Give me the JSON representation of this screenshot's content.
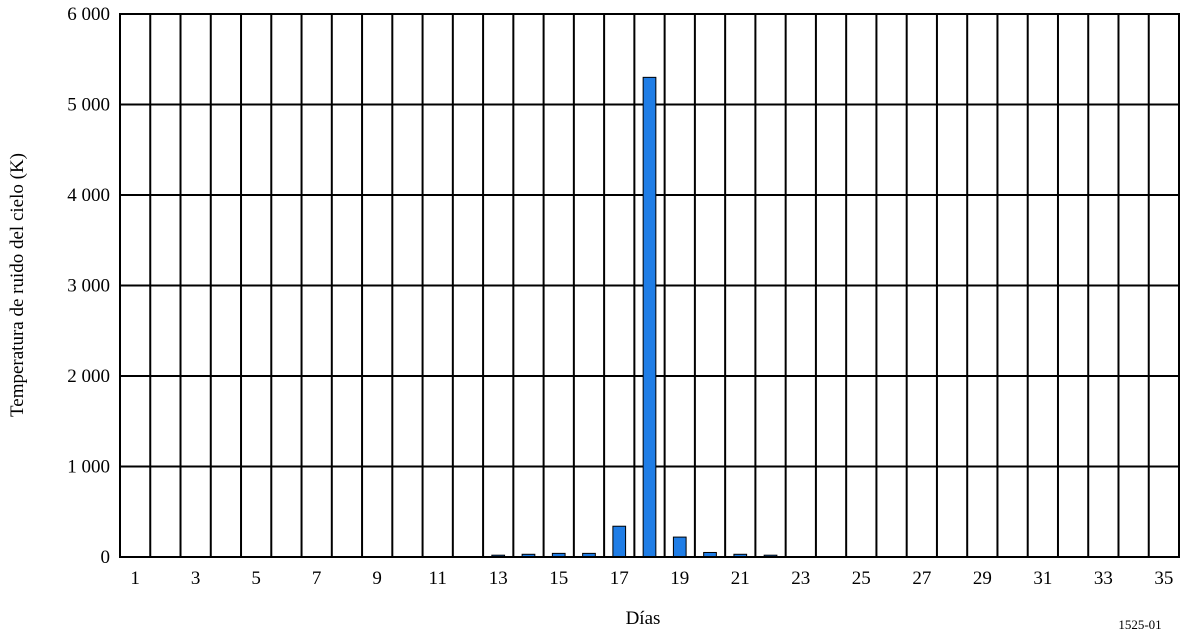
{
  "figure_id": "1525-01",
  "chart_data": {
    "type": "bar",
    "xlabel": "Días",
    "ylabel": "Temperatura de ruido del cielo (K)",
    "ylim": [
      0,
      6000
    ],
    "yticks": [
      0,
      1000,
      2000,
      3000,
      4000,
      5000,
      6000
    ],
    "ytick_labels": [
      "0",
      "1 000",
      "2 000",
      "3 000",
      "4 000",
      "5 000",
      "6 000"
    ],
    "xrange": [
      1,
      35
    ],
    "xtick_labels": [
      "1",
      "3",
      "5",
      "7",
      "9",
      "11",
      "13",
      "15",
      "17",
      "19",
      "21",
      "23",
      "25",
      "27",
      "29",
      "31",
      "33",
      "35"
    ],
    "grid": "vertical",
    "bar_color": "#1f7de6",
    "categories": [
      1,
      2,
      3,
      4,
      5,
      6,
      7,
      8,
      9,
      10,
      11,
      12,
      13,
      14,
      15,
      16,
      17,
      18,
      19,
      20,
      21,
      22,
      23,
      24,
      25,
      26,
      27,
      28,
      29,
      30,
      31,
      32,
      33,
      34,
      35
    ],
    "values": [
      0,
      0,
      0,
      0,
      0,
      0,
      0,
      0,
      0,
      0,
      0,
      0,
      20,
      30,
      40,
      40,
      340,
      5300,
      220,
      50,
      30,
      20,
      0,
      0,
      0,
      0,
      0,
      0,
      0,
      0,
      0,
      0,
      0,
      0,
      0
    ]
  }
}
